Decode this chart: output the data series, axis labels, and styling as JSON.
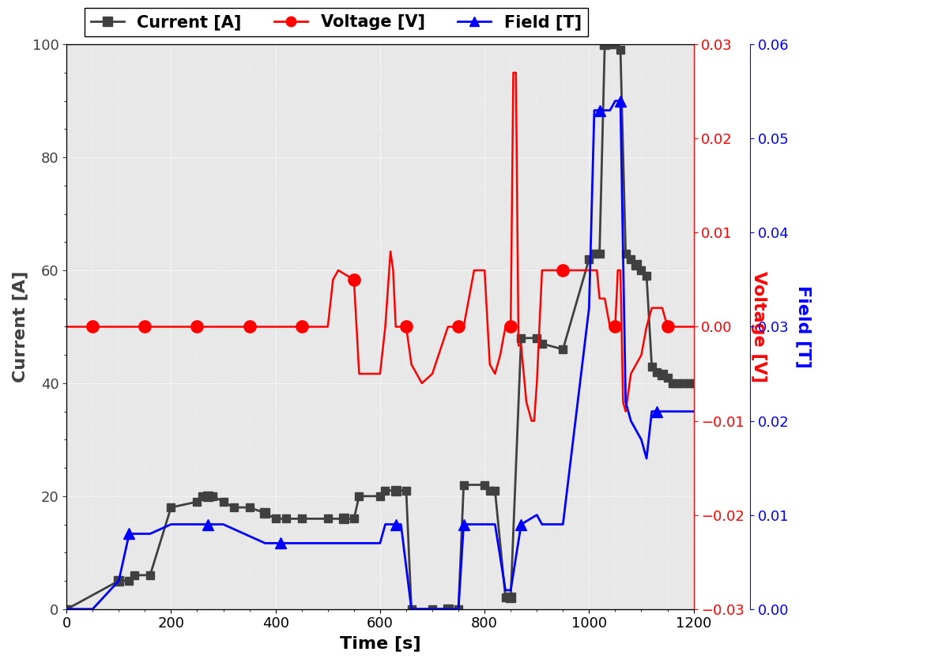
{
  "title": "",
  "xlabel": "Time [s]",
  "ylabel_left": "Current [A]",
  "ylabel_right_red": "Voltage [V]",
  "ylabel_right_blue": "Field [T]",
  "legend_labels": [
    "Current [A]",
    "Voltage [V]",
    "Field [T]"
  ],
  "xlim": [
    0,
    1200
  ],
  "ylim_current": [
    0,
    100
  ],
  "ylim_voltage": [
    -0.03,
    0.03
  ],
  "ylim_field": [
    0.0,
    0.06
  ],
  "background_color": "#e8e8e8",
  "current_color": "#404040",
  "voltage_color": "#ff0000",
  "field_color": "#0000ff",
  "current_time": [
    0,
    1,
    100,
    120,
    130,
    160,
    200,
    250,
    260,
    280,
    300,
    320,
    350,
    380,
    400,
    420,
    450,
    500,
    550,
    560,
    600,
    610,
    650,
    660,
    700,
    730,
    750,
    760,
    800,
    810,
    820,
    840,
    850,
    870,
    900,
    910,
    950,
    1000,
    1010,
    1020,
    1030,
    1040,
    1050,
    1060,
    1070,
    1080,
    1100,
    1110,
    1120,
    1130,
    1150,
    1160,
    1170,
    1180,
    1190,
    1200
  ],
  "current_values": [
    0,
    0,
    5,
    5,
    6,
    6,
    18,
    19,
    20,
    20,
    19,
    18,
    18,
    17,
    16,
    16,
    16,
    16,
    16,
    20,
    20,
    21,
    21,
    0,
    0,
    0,
    0,
    22,
    22,
    21,
    21,
    2,
    2,
    48,
    48,
    47,
    46,
    62,
    63,
    63,
    100,
    100,
    100,
    99,
    63,
    62,
    60,
    59,
    43,
    42,
    41,
    40,
    40,
    40,
    40,
    40
  ],
  "voltage_time": [
    0,
    50,
    100,
    110,
    150,
    200,
    250,
    300,
    350,
    400,
    450,
    500,
    510,
    520,
    550,
    560,
    600,
    610,
    620,
    625,
    630,
    650,
    660,
    680,
    700,
    730,
    750,
    760,
    780,
    800,
    810,
    820,
    830,
    840,
    850,
    855,
    860,
    865,
    870,
    880,
    890,
    895,
    900,
    910,
    950,
    1000,
    1010,
    1015,
    1020,
    1025,
    1030,
    1040,
    1050,
    1055,
    1060,
    1065,
    1070,
    1080,
    1100,
    1110,
    1120,
    1130,
    1140,
    1150,
    1160,
    1170,
    1180,
    1190,
    1200
  ],
  "voltage_values": [
    0,
    0,
    0,
    0,
    0,
    0,
    0,
    0,
    0,
    0,
    0,
    0,
    0.005,
    0.006,
    0.005,
    -0.005,
    -0.005,
    0,
    0.008,
    0.006,
    0,
    0,
    -0.004,
    -0.006,
    -0.005,
    0,
    0,
    0,
    0.006,
    0.006,
    -0.004,
    -0.005,
    -0.003,
    0,
    0,
    0.027,
    0.027,
    -0.002,
    -0.002,
    -0.008,
    -0.01,
    -0.01,
    -0.006,
    0.006,
    0.006,
    0.006,
    0.006,
    0.006,
    0.003,
    0.003,
    0.003,
    0,
    0,
    0.006,
    0.006,
    -0.008,
    -0.009,
    -0.005,
    -0.003,
    0,
    0.002,
    0.002,
    0.002,
    0,
    0,
    0,
    0,
    0,
    0
  ],
  "field_time": [
    0,
    50,
    100,
    120,
    160,
    200,
    250,
    260,
    280,
    300,
    340,
    380,
    400,
    410,
    450,
    500,
    550,
    600,
    610,
    640,
    660,
    700,
    730,
    750,
    760,
    800,
    810,
    820,
    840,
    850,
    870,
    900,
    910,
    950,
    1000,
    1010,
    1020,
    1030,
    1040,
    1050,
    1060,
    1070,
    1080,
    1100,
    1110,
    1120,
    1130,
    1150,
    1160,
    1170,
    1180,
    1200
  ],
  "field_values": [
    0,
    0,
    0.003,
    0.008,
    0.008,
    0.009,
    0.009,
    0.009,
    0.009,
    0.009,
    0.008,
    0.007,
    0.007,
    0.007,
    0.007,
    0.007,
    0.007,
    0.007,
    0.009,
    0.009,
    0,
    0,
    0,
    0,
    0.009,
    0.009,
    0.009,
    0.009,
    0.002,
    0.002,
    0.009,
    0.01,
    0.009,
    0.009,
    0.032,
    0.053,
    0.053,
    0.053,
    0.053,
    0.054,
    0.054,
    0.022,
    0.02,
    0.018,
    0.016,
    0.021,
    0.021,
    0.021,
    0.021,
    0.021,
    0.021,
    0.021
  ],
  "voltage_marker_times": [
    50,
    150,
    250,
    350,
    450,
    550,
    650,
    750,
    850,
    950,
    1050,
    1150
  ],
  "current_marker_times": [
    100,
    270,
    380,
    530,
    630,
    730,
    850,
    1030,
    1090,
    1140
  ],
  "field_marker_times": [
    120,
    270,
    410,
    630,
    760,
    870,
    1020,
    1060,
    1130
  ]
}
